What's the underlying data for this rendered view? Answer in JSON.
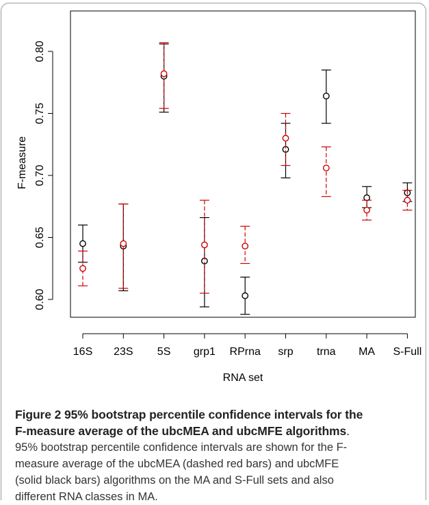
{
  "chart_data": {
    "type": "interval",
    "ylabel": "F-measure",
    "xlabel": "RNA set",
    "ylim": [
      0.59,
      0.81
    ],
    "yticks": [
      "0.60",
      "0.65",
      "0.70",
      "0.75",
      "0.80"
    ],
    "categories": [
      "16S",
      "23S",
      "5S",
      "grp1",
      "RPrna",
      "srp",
      "trna",
      "MA",
      "S-Full"
    ],
    "series": [
      {
        "name": "ubcMFE",
        "color": "#000000",
        "line_style": "solid",
        "estimate": [
          0.645,
          0.643,
          0.78,
          0.631,
          0.603,
          0.721,
          0.764,
          0.682,
          0.686
        ],
        "lower": [
          0.63,
          0.607,
          0.751,
          0.594,
          0.588,
          0.698,
          0.742,
          0.674,
          0.679
        ],
        "upper": [
          0.66,
          0.677,
          0.806,
          0.666,
          0.618,
          0.742,
          0.785,
          0.691,
          0.694
        ]
      },
      {
        "name": "ubcMEA",
        "color": "#cc0000",
        "line_style": "dashed",
        "estimate": [
          0.625,
          0.645,
          0.782,
          0.644,
          0.643,
          0.73,
          0.706,
          0.672,
          0.68
        ],
        "lower": [
          0.611,
          0.609,
          0.754,
          0.605,
          0.629,
          0.708,
          0.683,
          0.664,
          0.672
        ],
        "upper": [
          0.639,
          0.677,
          0.807,
          0.68,
          0.659,
          0.75,
          0.723,
          0.68,
          0.688
        ]
      }
    ]
  },
  "caption": {
    "title_lines": [
      "Figure 2 95% bootstrap percentile confidence intervals for the",
      "F-measure average of the ubcMEA and ubcMFE algorithms"
    ],
    "title_end": ".",
    "body_lines": [
      "95% bootstrap percentile confidence intervals are shown for the F-",
      "measure average of the ubcMEA (dashed red bars) and ubcMFE",
      "(solid black bars) algorithms on the MA and S-Full sets and also",
      "different RNA classes in MA."
    ]
  }
}
